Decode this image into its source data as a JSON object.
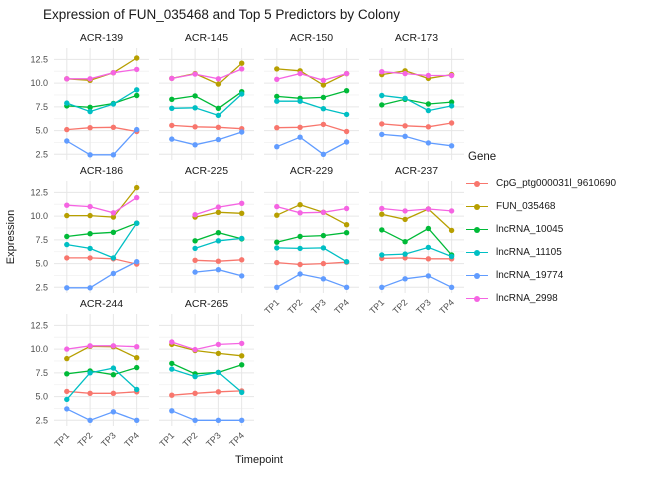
{
  "title": "Expression of FUN_035468 and Top 5 Predictors by Colony",
  "axes": {
    "x_title": "Timepoint",
    "y_title": "Expression",
    "x_ticks": [
      "TP1",
      "TP2",
      "TP3",
      "TP4"
    ],
    "y_ticks": [
      "12.5",
      "10.0",
      "7.5",
      "5.0",
      "2.5"
    ]
  },
  "legend": {
    "title": "Gene",
    "items": [
      {
        "label": "CpG_ptg000031l_9610690",
        "color": "#F8766D"
      },
      {
        "label": "FUN_035468",
        "color": "#B79F00"
      },
      {
        "label": "lncRNA_10045",
        "color": "#00BA38"
      },
      {
        "label": "lncRNA_11105",
        "color": "#00BFC4"
      },
      {
        "label": "lncRNA_19774",
        "color": "#619CFF"
      },
      {
        "label": "lncRNA_2998",
        "color": "#F564E2"
      }
    ]
  },
  "chart_data": {
    "type": "line",
    "x": [
      "TP1",
      "TP2",
      "TP3",
      "TP4"
    ],
    "ylim": [
      1.9,
      13.7
    ],
    "y_major": [
      2.5,
      5.0,
      7.5,
      10.0,
      12.5
    ],
    "y_minor": [
      3.75,
      6.25,
      8.75,
      11.25
    ],
    "xlabel": "Timepoint",
    "ylabel": "Expression",
    "legend_position": "right",
    "facets": [
      {
        "name": "ACR-139",
        "series": {
          "CpG_ptg000031l_9610690": [
            5.1,
            5.3,
            5.35,
            4.9
          ],
          "FUN_035468": [
            10.45,
            10.3,
            11.1,
            12.65
          ],
          "lncRNA_10045": [
            7.6,
            7.45,
            7.85,
            8.7
          ],
          "lncRNA_11105": [
            7.9,
            7.0,
            7.8,
            9.3
          ],
          "lncRNA_19774": [
            3.9,
            2.45,
            2.45,
            5.1
          ],
          "lncRNA_2998": [
            10.45,
            10.45,
            11.1,
            11.45
          ]
        }
      },
      {
        "name": "ACR-145",
        "series": {
          "CpG_ptg000031l_9610690": [
            5.55,
            5.4,
            5.35,
            5.2
          ],
          "FUN_035468": [
            10.5,
            11.0,
            9.9,
            12.1
          ],
          "lncRNA_10045": [
            8.3,
            8.65,
            7.35,
            9.1
          ],
          "lncRNA_11105": [
            7.35,
            7.4,
            6.6,
            8.85
          ],
          "lncRNA_19774": [
            4.1,
            3.5,
            4.05,
            4.85
          ],
          "lncRNA_2998": [
            10.5,
            10.95,
            10.45,
            11.5
          ]
        }
      },
      {
        "name": "ACR-150",
        "series": {
          "CpG_ptg000031l_9610690": [
            5.3,
            5.35,
            5.65,
            4.9
          ],
          "FUN_035468": [
            11.5,
            11.3,
            9.8,
            11.0
          ],
          "lncRNA_10045": [
            8.6,
            8.4,
            8.5,
            9.2
          ],
          "lncRNA_11105": [
            8.1,
            8.1,
            7.3,
            6.7
          ],
          "lncRNA_19774": [
            3.3,
            4.3,
            2.5,
            3.8
          ],
          "lncRNA_2998": [
            10.4,
            11.0,
            10.3,
            11.0
          ]
        }
      },
      {
        "name": "ACR-173",
        "series": {
          "CpG_ptg000031l_9610690": [
            5.7,
            5.5,
            5.4,
            5.8
          ],
          "FUN_035468": [
            10.9,
            11.3,
            10.5,
            10.9
          ],
          "lncRNA_10045": [
            7.7,
            8.3,
            7.8,
            8.0
          ],
          "lncRNA_11105": [
            8.7,
            8.4,
            7.1,
            7.6
          ],
          "lncRNA_19774": [
            4.6,
            4.4,
            3.7,
            3.4
          ],
          "lncRNA_2998": [
            11.2,
            11.0,
            10.8,
            10.8
          ]
        }
      },
      {
        "name": "ACR-186",
        "series": {
          "CpG_ptg000031l_9610690": [
            5.6,
            5.6,
            5.5,
            4.95
          ],
          "FUN_035468": [
            10.05,
            10.05,
            9.9,
            13.0
          ],
          "lncRNA_10045": [
            7.85,
            8.15,
            8.3,
            9.25
          ],
          "lncRNA_11105": [
            7.0,
            6.6,
            5.6,
            9.25
          ],
          "lncRNA_19774": [
            2.45,
            2.45,
            3.95,
            5.2
          ],
          "lncRNA_2998": [
            11.15,
            11.0,
            10.35,
            11.95
          ]
        }
      },
      {
        "name": "ACR-225",
        "series": {
          "CpG_ptg000031l_9610690": [
            null,
            5.35,
            5.25,
            5.4
          ],
          "FUN_035468": [
            null,
            9.9,
            10.4,
            10.3
          ],
          "lncRNA_10045": [
            null,
            7.4,
            8.25,
            7.6
          ],
          "lncRNA_11105": [
            null,
            6.6,
            7.4,
            7.65
          ],
          "lncRNA_19774": [
            null,
            4.1,
            4.35,
            3.7
          ],
          "lncRNA_2998": [
            null,
            10.15,
            10.95,
            11.35
          ]
        }
      },
      {
        "name": "ACR-229",
        "series": {
          "CpG_ptg000031l_9610690": [
            5.1,
            4.9,
            5.0,
            5.15
          ],
          "FUN_035468": [
            10.1,
            11.2,
            10.4,
            9.1
          ],
          "lncRNA_10045": [
            7.25,
            7.85,
            7.95,
            8.25
          ],
          "lncRNA_11105": [
            6.65,
            6.6,
            6.65,
            5.2
          ],
          "lncRNA_19774": [
            2.5,
            3.9,
            3.4,
            2.5
          ],
          "lncRNA_2998": [
            11.0,
            10.35,
            10.4,
            10.8
          ]
        }
      },
      {
        "name": "ACR-237",
        "series": {
          "CpG_ptg000031l_9610690": [
            5.55,
            5.6,
            5.5,
            5.5
          ],
          "FUN_035468": [
            10.2,
            9.65,
            10.75,
            8.5
          ],
          "lncRNA_10045": [
            8.55,
            7.3,
            8.7,
            5.9
          ],
          "lncRNA_11105": [
            5.9,
            6.0,
            6.7,
            5.75
          ],
          "lncRNA_19774": [
            2.5,
            3.4,
            3.7,
            2.5
          ],
          "lncRNA_2998": [
            10.8,
            10.55,
            10.75,
            10.55
          ]
        }
      },
      {
        "name": "ACR-244",
        "series": {
          "CpG_ptg000031l_9610690": [
            5.55,
            5.35,
            5.35,
            5.5
          ],
          "FUN_035468": [
            9.0,
            10.3,
            10.25,
            9.1
          ],
          "lncRNA_10045": [
            7.4,
            7.7,
            7.3,
            8.05
          ],
          "lncRNA_11105": [
            4.7,
            7.5,
            8.0,
            5.75
          ],
          "lncRNA_19774": [
            3.7,
            2.5,
            3.4,
            2.5
          ],
          "lncRNA_2998": [
            10.0,
            10.35,
            10.35,
            10.25
          ]
        }
      },
      {
        "name": "ACR-265",
        "series": {
          "CpG_ptg000031l_9610690": [
            5.15,
            5.35,
            5.5,
            5.6
          ],
          "FUN_035468": [
            10.5,
            9.85,
            9.55,
            9.3
          ],
          "lncRNA_10045": [
            8.5,
            7.4,
            7.55,
            8.35
          ],
          "lncRNA_11105": [
            7.9,
            7.1,
            7.55,
            5.45
          ],
          "lncRNA_19774": [
            3.5,
            2.5,
            2.5,
            2.5
          ],
          "lncRNA_2998": [
            10.75,
            9.95,
            10.5,
            10.6
          ]
        }
      }
    ]
  },
  "style": {
    "grid_major_color": "#e6e6e6",
    "grid_minor_color": "#f3f3f3",
    "tick_label_color": "#4d4d4d",
    "text_color": "#1a1a1a"
  }
}
